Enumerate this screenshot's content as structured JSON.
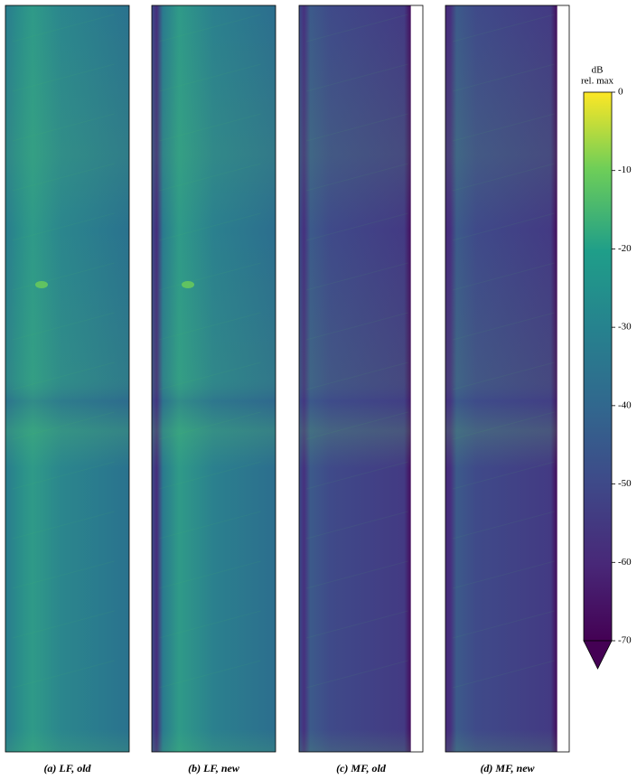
{
  "chart_data": {
    "type": "image-grid",
    "panels": [
      {
        "caption": "(a) LF, old"
      },
      {
        "caption": "(b) LF, new"
      },
      {
        "caption": "(c) MF, old"
      },
      {
        "caption": "(d) MF, new"
      }
    ],
    "colorbar_label": "dB",
    "colorbar_sublabel": "rel. max",
    "ylim": [
      -70,
      0
    ],
    "yticks": [
      0,
      -10,
      -20,
      -30,
      -40,
      -50,
      -60,
      -70
    ],
    "extend": "min"
  }
}
